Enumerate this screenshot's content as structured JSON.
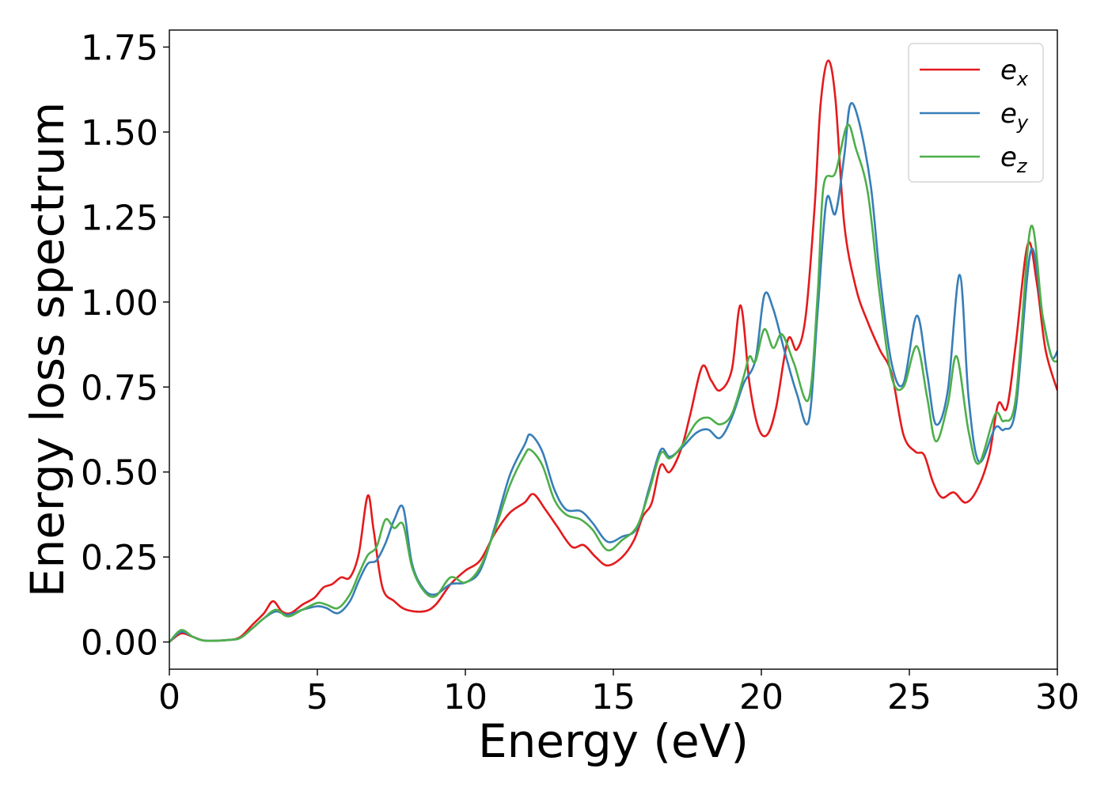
{
  "chart_data": {
    "type": "line",
    "title": "",
    "xlabel": "Energy (eV)",
    "ylabel": "Energy loss spectrum",
    "xlim": [
      0,
      30
    ],
    "ylim": [
      -0.08,
      1.8
    ],
    "xticks": [
      0,
      5,
      10,
      15,
      20,
      25,
      30
    ],
    "yticks": [
      0.0,
      0.25,
      0.5,
      0.75,
      1.0,
      1.25,
      1.5,
      1.75
    ],
    "ytick_labels": [
      "0.00",
      "0.25",
      "0.50",
      "0.75",
      "1.00",
      "1.25",
      "1.50",
      "1.75"
    ],
    "grid": false,
    "legend_position": "top-right",
    "series": [
      {
        "name": "e_x",
        "label_main": "e",
        "label_sub": "x",
        "color": "#e41a1c",
        "points": [
          [
            0,
            0.0
          ],
          [
            0.4,
            0.025
          ],
          [
            0.8,
            0.015
          ],
          [
            1.2,
            0.004
          ],
          [
            2.0,
            0.006
          ],
          [
            2.4,
            0.015
          ],
          [
            2.8,
            0.05
          ],
          [
            3.2,
            0.085
          ],
          [
            3.5,
            0.12
          ],
          [
            3.8,
            0.09
          ],
          [
            4.1,
            0.085
          ],
          [
            4.5,
            0.11
          ],
          [
            4.9,
            0.13
          ],
          [
            5.2,
            0.16
          ],
          [
            5.5,
            0.17
          ],
          [
            5.8,
            0.19
          ],
          [
            6.1,
            0.19
          ],
          [
            6.4,
            0.26
          ],
          [
            6.7,
            0.43
          ],
          [
            6.9,
            0.33
          ],
          [
            7.2,
            0.16
          ],
          [
            7.6,
            0.12
          ],
          [
            8.0,
            0.095
          ],
          [
            8.6,
            0.09
          ],
          [
            9.0,
            0.11
          ],
          [
            9.5,
            0.17
          ],
          [
            10.0,
            0.21
          ],
          [
            10.5,
            0.24
          ],
          [
            11.0,
            0.32
          ],
          [
            11.5,
            0.38
          ],
          [
            12.0,
            0.41
          ],
          [
            12.3,
            0.435
          ],
          [
            12.7,
            0.39
          ],
          [
            13.1,
            0.34
          ],
          [
            13.6,
            0.28
          ],
          [
            14.0,
            0.285
          ],
          [
            14.4,
            0.25
          ],
          [
            14.8,
            0.225
          ],
          [
            15.3,
            0.25
          ],
          [
            15.7,
            0.3
          ],
          [
            16.0,
            0.37
          ],
          [
            16.3,
            0.41
          ],
          [
            16.6,
            0.52
          ],
          [
            16.9,
            0.5
          ],
          [
            17.3,
            0.57
          ],
          [
            17.6,
            0.67
          ],
          [
            18.0,
            0.81
          ],
          [
            18.3,
            0.77
          ],
          [
            18.6,
            0.74
          ],
          [
            19.0,
            0.8
          ],
          [
            19.3,
            0.99
          ],
          [
            19.6,
            0.76
          ],
          [
            19.9,
            0.63
          ],
          [
            20.2,
            0.61
          ],
          [
            20.5,
            0.69
          ],
          [
            20.9,
            0.89
          ],
          [
            21.2,
            0.86
          ],
          [
            21.5,
            0.96
          ],
          [
            21.8,
            1.28
          ],
          [
            22.0,
            1.58
          ],
          [
            22.25,
            1.71
          ],
          [
            22.5,
            1.6
          ],
          [
            22.8,
            1.23
          ],
          [
            23.2,
            1.04
          ],
          [
            23.6,
            0.94
          ],
          [
            24.0,
            0.86
          ],
          [
            24.4,
            0.79
          ],
          [
            24.8,
            0.61
          ],
          [
            25.2,
            0.56
          ],
          [
            25.5,
            0.55
          ],
          [
            25.8,
            0.47
          ],
          [
            26.1,
            0.425
          ],
          [
            26.5,
            0.44
          ],
          [
            26.9,
            0.41
          ],
          [
            27.3,
            0.45
          ],
          [
            27.7,
            0.55
          ],
          [
            28.0,
            0.7
          ],
          [
            28.3,
            0.69
          ],
          [
            28.6,
            0.88
          ],
          [
            29.0,
            1.17
          ],
          [
            29.3,
            1.06
          ],
          [
            29.6,
            0.86
          ],
          [
            30.0,
            0.74
          ]
        ]
      },
      {
        "name": "e_y",
        "label_main": "e",
        "label_sub": "y",
        "color": "#377eb8",
        "points": [
          [
            0,
            0.0
          ],
          [
            0.4,
            0.03
          ],
          [
            0.8,
            0.015
          ],
          [
            1.2,
            0.004
          ],
          [
            2.0,
            0.006
          ],
          [
            2.4,
            0.012
          ],
          [
            2.8,
            0.04
          ],
          [
            3.2,
            0.07
          ],
          [
            3.6,
            0.09
          ],
          [
            4.0,
            0.08
          ],
          [
            4.5,
            0.095
          ],
          [
            5.0,
            0.105
          ],
          [
            5.3,
            0.1
          ],
          [
            5.7,
            0.085
          ],
          [
            6.1,
            0.12
          ],
          [
            6.4,
            0.18
          ],
          [
            6.7,
            0.23
          ],
          [
            7.0,
            0.24
          ],
          [
            7.3,
            0.29
          ],
          [
            7.6,
            0.36
          ],
          [
            7.9,
            0.395
          ],
          [
            8.2,
            0.23
          ],
          [
            8.6,
            0.155
          ],
          [
            9.0,
            0.14
          ],
          [
            9.5,
            0.17
          ],
          [
            10.0,
            0.175
          ],
          [
            10.5,
            0.21
          ],
          [
            11.0,
            0.34
          ],
          [
            11.5,
            0.49
          ],
          [
            12.0,
            0.58
          ],
          [
            12.2,
            0.61
          ],
          [
            12.6,
            0.56
          ],
          [
            13.0,
            0.45
          ],
          [
            13.4,
            0.39
          ],
          [
            13.9,
            0.385
          ],
          [
            14.3,
            0.35
          ],
          [
            14.8,
            0.295
          ],
          [
            15.3,
            0.31
          ],
          [
            15.8,
            0.335
          ],
          [
            16.2,
            0.45
          ],
          [
            16.6,
            0.565
          ],
          [
            16.9,
            0.545
          ],
          [
            17.3,
            0.57
          ],
          [
            17.8,
            0.615
          ],
          [
            18.2,
            0.625
          ],
          [
            18.6,
            0.6
          ],
          [
            19.0,
            0.66
          ],
          [
            19.4,
            0.76
          ],
          [
            19.8,
            0.83
          ],
          [
            20.1,
            1.02
          ],
          [
            20.4,
            0.98
          ],
          [
            20.8,
            0.85
          ],
          [
            21.2,
            0.73
          ],
          [
            21.6,
            0.65
          ],
          [
            21.9,
            0.97
          ],
          [
            22.2,
            1.3
          ],
          [
            22.5,
            1.26
          ],
          [
            22.8,
            1.43
          ],
          [
            23.0,
            1.58
          ],
          [
            23.3,
            1.53
          ],
          [
            23.7,
            1.34
          ],
          [
            24.0,
            1.08
          ],
          [
            24.4,
            0.82
          ],
          [
            24.8,
            0.76
          ],
          [
            25.25,
            0.96
          ],
          [
            25.6,
            0.79
          ],
          [
            25.9,
            0.64
          ],
          [
            26.3,
            0.74
          ],
          [
            26.7,
            1.08
          ],
          [
            27.0,
            0.72
          ],
          [
            27.35,
            0.53
          ],
          [
            27.9,
            0.63
          ],
          [
            28.2,
            0.625
          ],
          [
            28.6,
            0.69
          ],
          [
            29.1,
            1.15
          ],
          [
            29.5,
            0.96
          ],
          [
            29.8,
            0.84
          ],
          [
            30.0,
            0.855
          ]
        ]
      },
      {
        "name": "e_z",
        "label_main": "e",
        "label_sub": "z",
        "color": "#4daf4a",
        "points": [
          [
            0,
            0.0
          ],
          [
            0.4,
            0.035
          ],
          [
            0.8,
            0.015
          ],
          [
            1.2,
            0.004
          ],
          [
            2.0,
            0.006
          ],
          [
            2.4,
            0.012
          ],
          [
            2.8,
            0.04
          ],
          [
            3.2,
            0.07
          ],
          [
            3.6,
            0.095
          ],
          [
            4.0,
            0.075
          ],
          [
            4.5,
            0.095
          ],
          [
            5.0,
            0.115
          ],
          [
            5.3,
            0.11
          ],
          [
            5.7,
            0.1
          ],
          [
            6.1,
            0.14
          ],
          [
            6.4,
            0.2
          ],
          [
            6.7,
            0.255
          ],
          [
            7.0,
            0.28
          ],
          [
            7.3,
            0.36
          ],
          [
            7.6,
            0.335
          ],
          [
            7.9,
            0.345
          ],
          [
            8.2,
            0.22
          ],
          [
            8.6,
            0.15
          ],
          [
            9.0,
            0.135
          ],
          [
            9.5,
            0.19
          ],
          [
            10.0,
            0.175
          ],
          [
            10.5,
            0.22
          ],
          [
            11.0,
            0.33
          ],
          [
            11.5,
            0.46
          ],
          [
            12.0,
            0.55
          ],
          [
            12.2,
            0.565
          ],
          [
            12.6,
            0.52
          ],
          [
            13.0,
            0.42
          ],
          [
            13.4,
            0.375
          ],
          [
            13.9,
            0.36
          ],
          [
            14.3,
            0.33
          ],
          [
            14.8,
            0.27
          ],
          [
            15.3,
            0.3
          ],
          [
            15.8,
            0.34
          ],
          [
            16.2,
            0.44
          ],
          [
            16.6,
            0.555
          ],
          [
            16.9,
            0.54
          ],
          [
            17.3,
            0.575
          ],
          [
            17.8,
            0.645
          ],
          [
            18.2,
            0.66
          ],
          [
            18.6,
            0.64
          ],
          [
            19.0,
            0.67
          ],
          [
            19.4,
            0.78
          ],
          [
            19.6,
            0.84
          ],
          [
            19.8,
            0.825
          ],
          [
            20.1,
            0.92
          ],
          [
            20.4,
            0.865
          ],
          [
            20.7,
            0.905
          ],
          [
            21.1,
            0.82
          ],
          [
            21.6,
            0.715
          ],
          [
            21.9,
            1.02
          ],
          [
            22.1,
            1.34
          ],
          [
            22.5,
            1.38
          ],
          [
            22.9,
            1.52
          ],
          [
            23.2,
            1.45
          ],
          [
            23.6,
            1.32
          ],
          [
            24.0,
            1.02
          ],
          [
            24.4,
            0.78
          ],
          [
            24.8,
            0.75
          ],
          [
            25.25,
            0.87
          ],
          [
            25.6,
            0.72
          ],
          [
            25.9,
            0.59
          ],
          [
            26.3,
            0.7
          ],
          [
            26.6,
            0.84
          ],
          [
            27.0,
            0.62
          ],
          [
            27.35,
            0.525
          ],
          [
            27.9,
            0.67
          ],
          [
            28.2,
            0.65
          ],
          [
            28.6,
            0.72
          ],
          [
            29.1,
            1.22
          ],
          [
            29.5,
            0.96
          ],
          [
            29.8,
            0.84
          ],
          [
            30.0,
            0.825
          ]
        ]
      }
    ]
  }
}
